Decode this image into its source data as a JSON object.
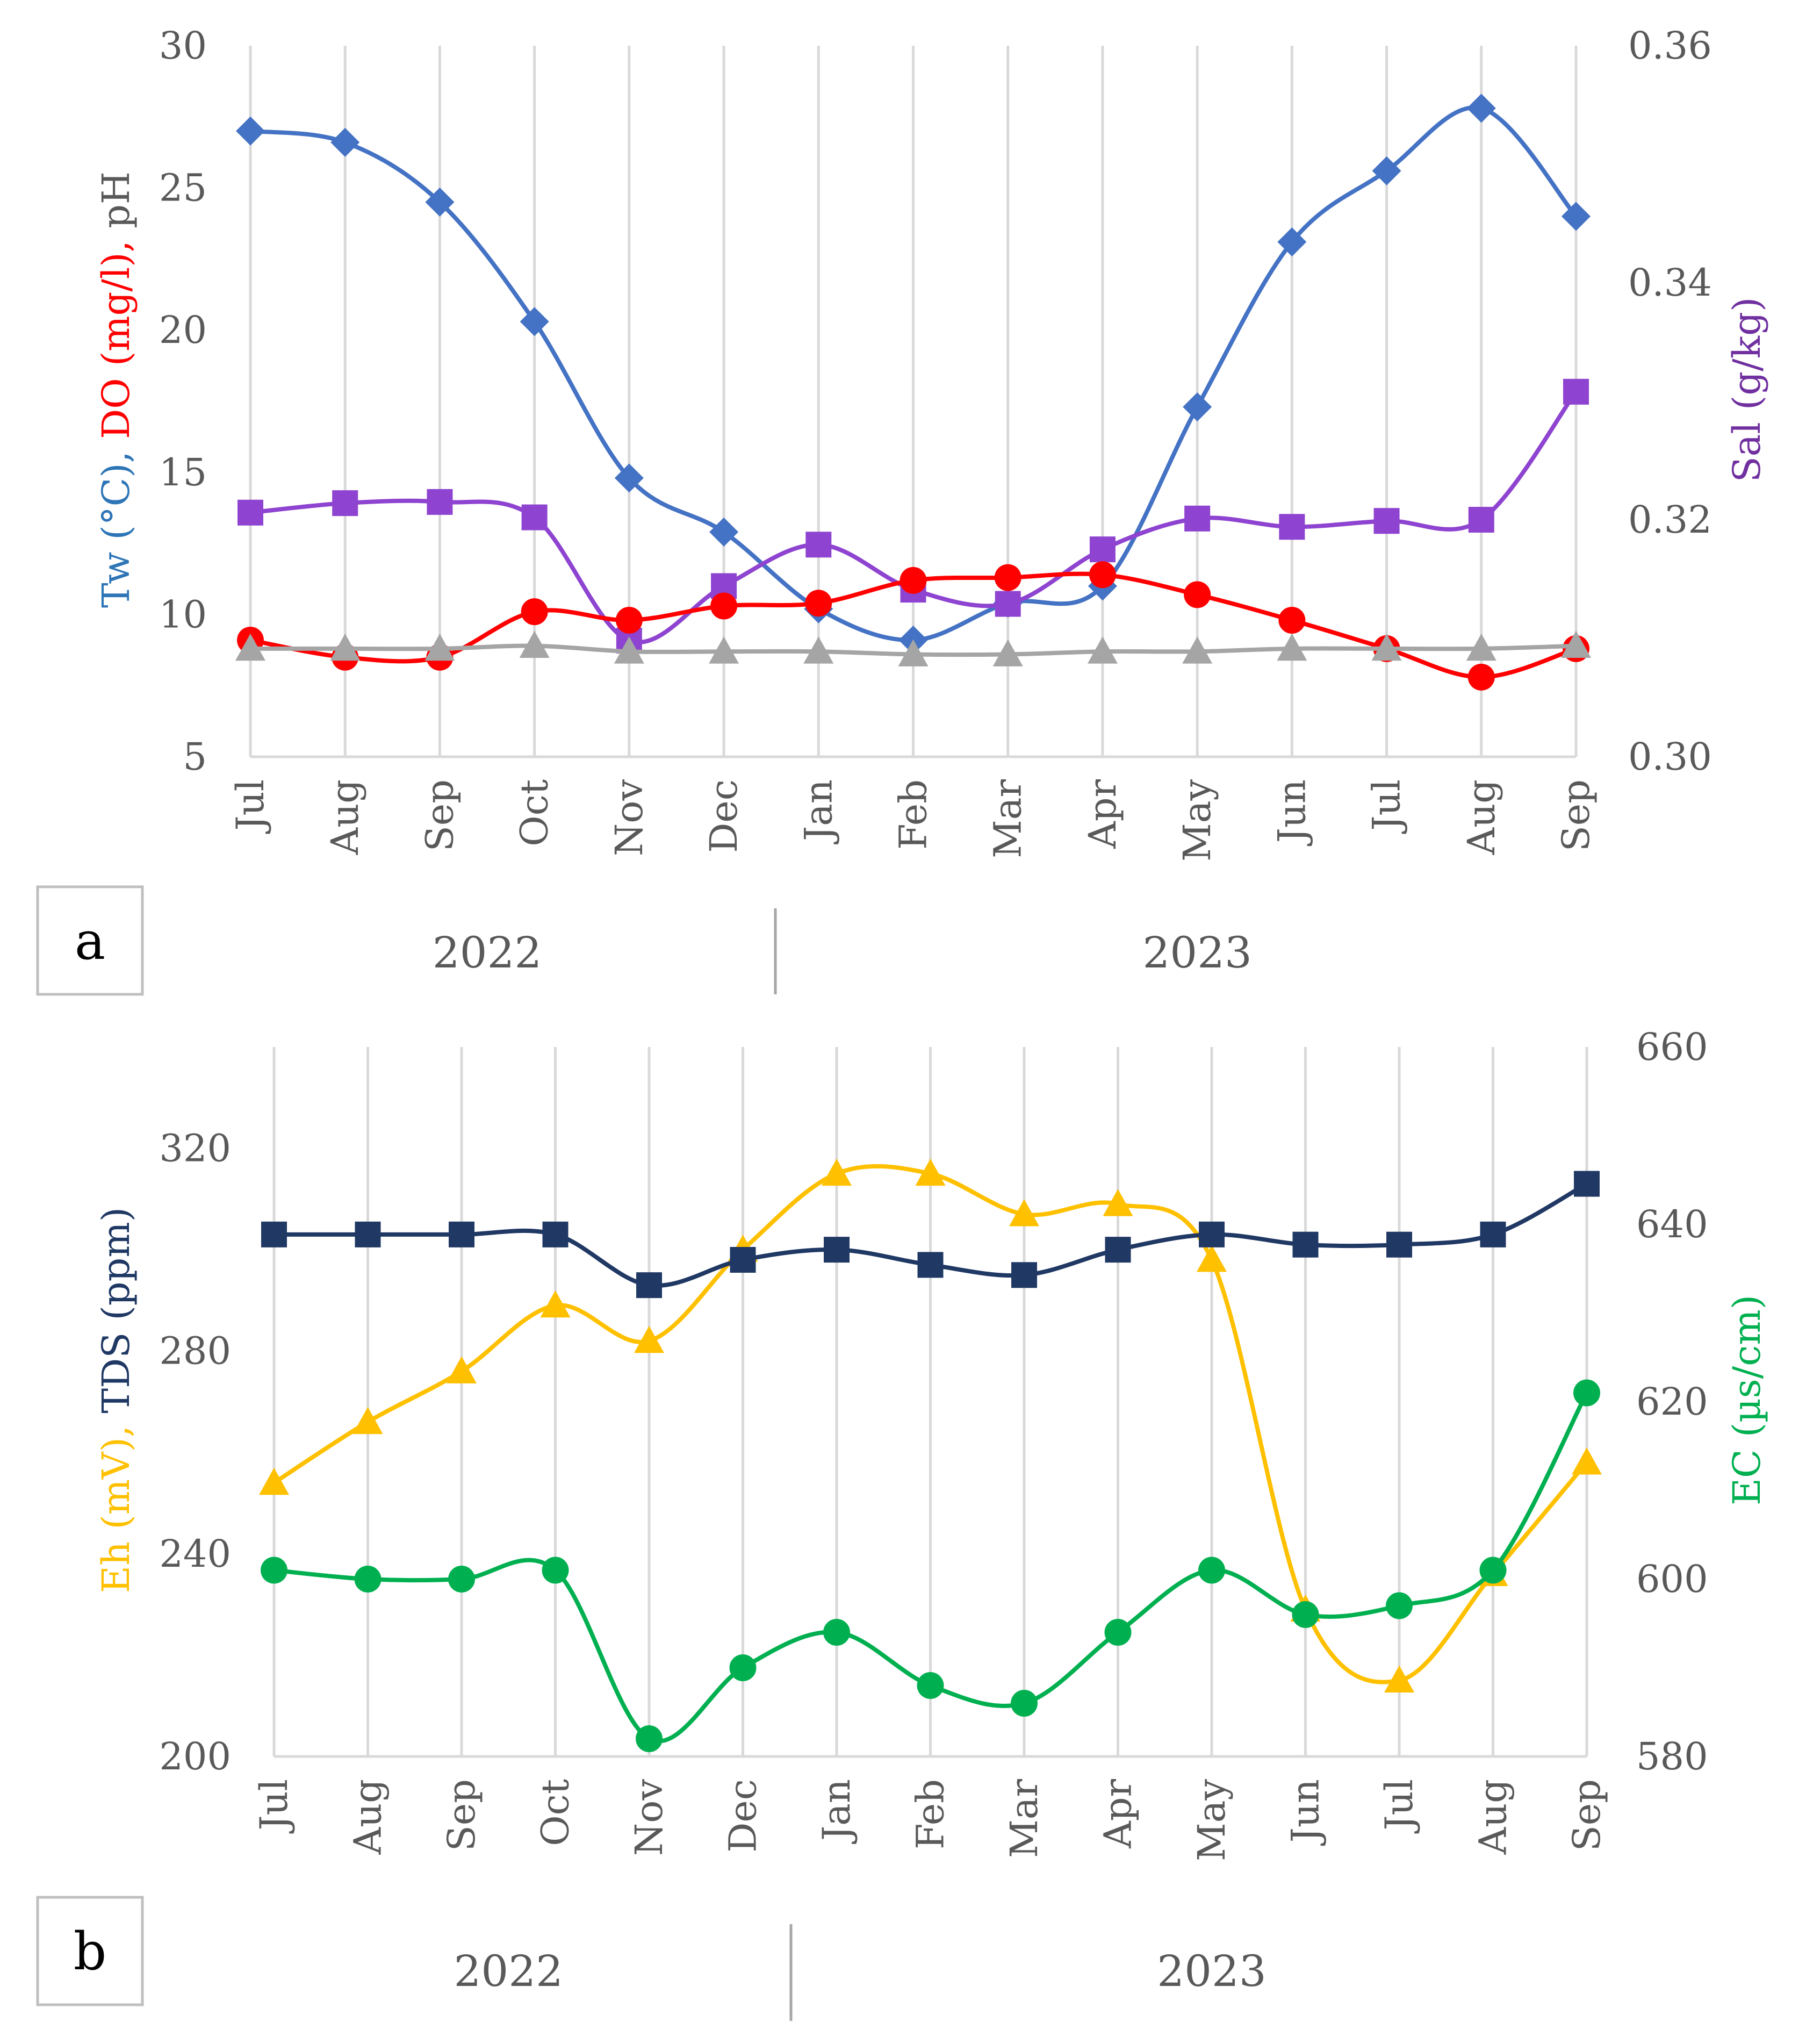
{
  "chart_data": [
    {
      "panel_label": "a",
      "type": "line",
      "categories": [
        "Jul",
        "Aug",
        "Sep",
        "Oct",
        "Nov",
        "Dec",
        "Jan",
        "Feb",
        "Mar",
        "Apr",
        "May",
        "Jun",
        "Jul",
        "Aug",
        "Sep"
      ],
      "year_groups": [
        {
          "label": "2022",
          "span": 6
        },
        {
          "label": "2023",
          "span": 9
        }
      ],
      "y_left": {
        "lim": [
          5,
          30
        ],
        "ticks": [
          "5",
          "10",
          "15",
          "20",
          "25",
          "30"
        ],
        "tick_values": [
          5,
          10,
          15,
          20,
          25,
          30
        ]
      },
      "y_right": {
        "lim": [
          0.3,
          0.36
        ],
        "ticks": [
          "0.30",
          "0.32",
          "0.34",
          "0.36"
        ],
        "tick_values": [
          0.3,
          0.32,
          0.34,
          0.36
        ]
      },
      "ylabel_left_parts": [
        {
          "text": "Tw (°C), ",
          "color": "#2e75b6"
        },
        {
          "text": "DO (mg/l), ",
          "color": "#ff0000"
        },
        {
          "text": "pH",
          "color": "#595959"
        }
      ],
      "ylabel_right": {
        "text": "Sal (g/kg)",
        "color": "#7030a0"
      },
      "grid": true,
      "series": [
        {
          "name": "Tw (°C)",
          "axis": "left",
          "color": "#4472c4",
          "marker": "diamond",
          "values": [
            27.0,
            26.6,
            24.5,
            20.3,
            14.8,
            12.9,
            10.2,
            9.1,
            10.4,
            11.0,
            17.3,
            23.1,
            25.6,
            27.8,
            24.0
          ]
        },
        {
          "name": "Sal (g/kg)",
          "axis": "right",
          "color": "#8e44d0",
          "marker": "square",
          "values": [
            0.3206,
            0.3214,
            0.3215,
            0.3202,
            0.3098,
            0.3144,
            0.3179,
            0.3141,
            0.3129,
            0.3175,
            0.3201,
            0.3194,
            0.3199,
            0.32,
            0.3308
          ]
        },
        {
          "name": "DO (mg/l)",
          "axis": "left",
          "color": "#ff0000",
          "marker": "circle",
          "values": [
            9.1,
            8.5,
            8.5,
            10.1,
            9.8,
            10.3,
            10.4,
            11.2,
            11.3,
            11.4,
            10.7,
            9.8,
            8.8,
            7.8,
            8.8
          ]
        },
        {
          "name": "pH",
          "axis": "left",
          "color": "#a5a5a5",
          "marker": "triangle",
          "values": [
            8.8,
            8.8,
            8.8,
            8.9,
            8.7,
            8.7,
            8.7,
            8.6,
            8.6,
            8.7,
            8.7,
            8.8,
            8.8,
            8.8,
            8.9
          ]
        }
      ]
    },
    {
      "panel_label": "b",
      "type": "line",
      "categories": [
        "Jul",
        "Aug",
        "Sep",
        "Oct",
        "Nov",
        "Dec",
        "Jan",
        "Feb",
        "Mar",
        "Apr",
        "May",
        "Jun",
        "Jul",
        "Aug",
        "Sep"
      ],
      "year_groups": [
        {
          "label": "2022",
          "span": 6
        },
        {
          "label": "2023",
          "span": 9
        }
      ],
      "y_left": {
        "lim": [
          200,
          340
        ],
        "ticks": [
          "200",
          "240",
          "280",
          "320"
        ],
        "tick_values": [
          200,
          240,
          280,
          320
        ]
      },
      "y_right": {
        "lim": [
          580,
          660
        ],
        "ticks": [
          "580",
          "600",
          "620",
          "640",
          "660"
        ],
        "tick_values": [
          580,
          600,
          620,
          640,
          660
        ]
      },
      "ylabel_left_parts": [
        {
          "text": "Eh (mV), ",
          "color": "#ffc000"
        },
        {
          "text": "TDS (ppm)",
          "color": "#1f3864"
        }
      ],
      "ylabel_right": {
        "text": "EC (µs/cm)",
        "color": "#00b050"
      },
      "grid": true,
      "series": [
        {
          "name": "Eh (mV)",
          "axis": "left",
          "color": "#ffc000",
          "marker": "triangle",
          "values": [
            254,
            266,
            276,
            289,
            282,
            300,
            315,
            315,
            307,
            309,
            298,
            229,
            215,
            236,
            258
          ]
        },
        {
          "name": "TDS (ppm)",
          "axis": "left",
          "color": "#203864",
          "marker": "square",
          "values": [
            303,
            303,
            303,
            303,
            293,
            298,
            300,
            297,
            295,
            300,
            303,
            301,
            301,
            303,
            313
          ]
        },
        {
          "name": "EC (µs/cm)",
          "axis": "right",
          "color": "#00b050",
          "marker": "circle",
          "values": [
            601,
            600,
            600,
            601,
            582,
            590,
            594,
            588,
            586,
            594,
            601,
            596,
            597,
            601,
            621
          ]
        }
      ]
    }
  ]
}
